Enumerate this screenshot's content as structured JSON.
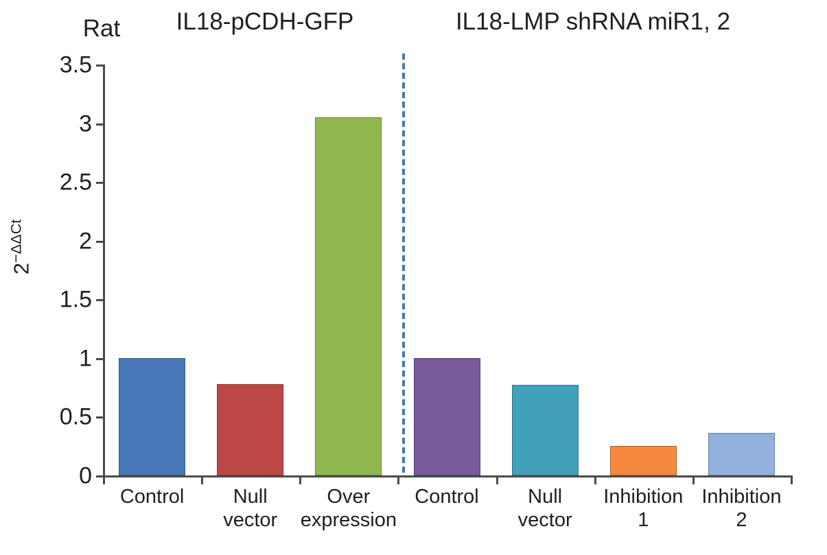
{
  "header": {
    "model_label": "Rat",
    "left_group_title": "IL18-pCDH-GFP",
    "right_group_title": "IL18-LMP shRNA miR1, 2"
  },
  "chart_data": {
    "type": "bar",
    "title": "",
    "ylabel_base": "2",
    "ylabel_sup": "−ΔΔCt",
    "ylim": [
      0,
      3.5
    ],
    "yticks": [
      0,
      0.5,
      1,
      1.5,
      2,
      2.5,
      3,
      3.5
    ],
    "grid": "off",
    "legend": "none",
    "categories": [
      "Control",
      "Null vector",
      "Over expression",
      "Control",
      "Null vector",
      "Inhibition 1",
      "Inhibition 2"
    ],
    "category_label_lines": [
      [
        "Control"
      ],
      [
        "Null",
        "vector"
      ],
      [
        "Over",
        "expression"
      ],
      [
        "Control"
      ],
      [
        "Null",
        "vector"
      ],
      [
        "Inhibition",
        "1"
      ],
      [
        "Inhibition",
        "2"
      ]
    ],
    "values": [
      1.0,
      0.78,
      3.05,
      1.0,
      0.77,
      0.25,
      0.36
    ],
    "bar_colors": [
      "#4878b8",
      "#bc4745",
      "#8fb84e",
      "#77599c",
      "#41a0ba",
      "#f5893b",
      "#92b2dd"
    ],
    "separator": {
      "after_category_index": 2,
      "style": "dashed",
      "color": "#4878a8"
    },
    "groups": [
      {
        "title": "IL18-pCDH-GFP",
        "categories": [
          "Control",
          "Null vector",
          "Over expression"
        ]
      },
      {
        "title": "IL18-LMP shRNA miR1, 2",
        "categories": [
          "Control",
          "Null vector",
          "Inhibition 1",
          "Inhibition 2"
        ]
      }
    ]
  },
  "colors": {
    "axis": "#4a4a4a",
    "text": "#1f1f1f",
    "separator": "#4878a8",
    "background": "#ffffff"
  }
}
